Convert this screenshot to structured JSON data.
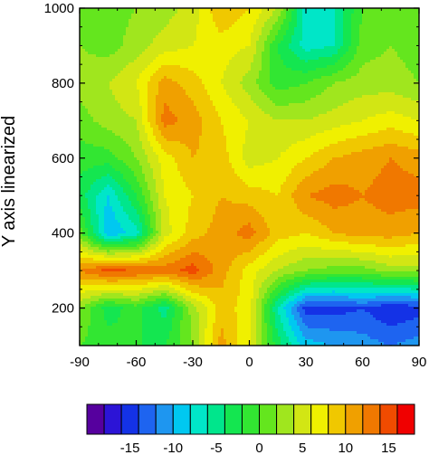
{
  "chart_data": {
    "type": "heatmap",
    "title": "",
    "xlabel": "",
    "ylabel": "Y axis linearized",
    "xlim": [
      -90,
      90
    ],
    "ylim": [
      100,
      1000
    ],
    "x_ticks": [
      -90,
      -60,
      -30,
      0,
      30,
      60,
      90
    ],
    "x_tick_labels": [
      "-90",
      "-60",
      "-30",
      "0",
      "30",
      "60",
      "90"
    ],
    "y_ticks": [
      200,
      400,
      600,
      800,
      1000
    ],
    "y_tick_labels": [
      "200",
      "400",
      "600",
      "800",
      "1000"
    ],
    "grid": false,
    "x": [
      -90,
      -75,
      -60,
      -45,
      -30,
      -15,
      0,
      15,
      30,
      45,
      60,
      75,
      90
    ],
    "y": [
      100,
      200,
      300,
      400,
      500,
      600,
      700,
      800,
      900,
      1000
    ],
    "z": [
      [
        0,
        -1,
        -2,
        -2,
        2,
        11,
        6,
        -3,
        -9,
        -10,
        -11,
        -12,
        -11
      ],
      [
        2,
        -3,
        -1,
        -5,
        3,
        9,
        7,
        -6,
        -15,
        -15,
        -14,
        -16,
        -15
      ],
      [
        12,
        15,
        14,
        13,
        15,
        11,
        7,
        4,
        2,
        1,
        1,
        3,
        3
      ],
      [
        1,
        -10,
        -7,
        5,
        9,
        11,
        13,
        9,
        8,
        10,
        11,
        11,
        10
      ],
      [
        -3,
        -8,
        -2,
        6,
        8,
        10,
        9,
        8,
        12,
        13,
        12,
        13,
        13
      ],
      [
        -1,
        -1,
        2,
        7,
        10,
        9,
        5,
        6,
        8,
        10,
        11,
        12,
        11
      ],
      [
        1,
        3,
        4,
        13,
        11,
        8,
        6,
        4,
        4,
        5,
        6,
        7,
        6
      ],
      [
        3,
        4,
        6,
        11,
        9,
        6,
        3,
        -1,
        0,
        2,
        3,
        3,
        2
      ],
      [
        2,
        1,
        3,
        5,
        6,
        7,
        6,
        -2,
        -7,
        -6,
        1,
        2,
        1
      ],
      [
        0,
        1,
        2,
        3,
        5,
        10,
        8,
        4,
        -7,
        -6,
        0,
        1,
        0
      ]
    ],
    "levels": [
      -18,
      -16,
      -14,
      -12,
      -10,
      -8,
      -6,
      -4,
      -2,
      0,
      2,
      4,
      6,
      8,
      10,
      12,
      14,
      16
    ],
    "colors": [
      "#56009e",
      "#2c14d6",
      "#1432e6",
      "#1e64f0",
      "#1e96f0",
      "#00c8f0",
      "#00e6c8",
      "#00e68c",
      "#14e650",
      "#32e632",
      "#64e61e",
      "#a0e61e",
      "#d2e614",
      "#f0f000",
      "#f0c800",
      "#f0a000",
      "#f07800",
      "#f04b00",
      "#f00000"
    ],
    "colorbar": {
      "ticks": [
        -15,
        -10,
        -5,
        0,
        5,
        10,
        15
      ],
      "tick_labels": [
        "-15",
        "-10",
        "-5",
        "0",
        "5",
        "10",
        "15"
      ],
      "placement": "bottom"
    }
  }
}
